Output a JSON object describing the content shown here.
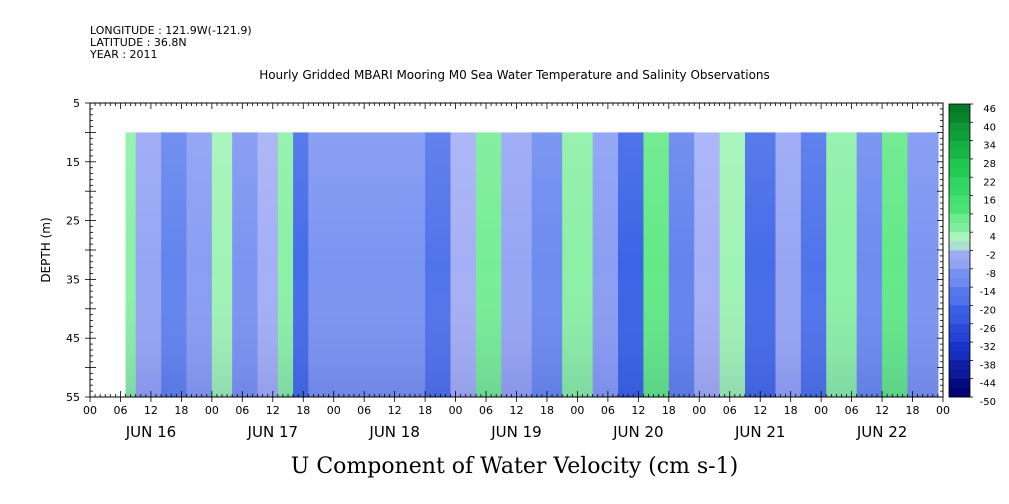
{
  "header": {
    "longitude": "LONGITUDE : 121.9W(-121.9)",
    "latitude": "LATITUDE : 36.8N",
    "year": "YEAR : 2011"
  },
  "chart_data": {
    "type": "heatmap",
    "title": "Hourly Gridded MBARI Mooring M0 Sea Water Temperature and Salinity Observations",
    "xlabel": "U Component of Water Velocity (cm s-1)",
    "ylabel": "DEPTH (m)",
    "ylim": [
      5,
      55
    ],
    "y_ticks": [
      5,
      15,
      25,
      35,
      45,
      55
    ],
    "y_reversed": true,
    "x_hour_ticks": [
      "00",
      "06",
      "12",
      "18",
      "00",
      "06",
      "12",
      "18",
      "00",
      "06",
      "12",
      "18",
      "00",
      "06",
      "12",
      "18",
      "00",
      "06",
      "12",
      "18",
      "00",
      "06",
      "12",
      "18",
      "00",
      "06",
      "12",
      "18",
      "00"
    ],
    "x_day_labels": [
      "JUN 16",
      "JUN 17",
      "JUN 18",
      "JUN 19",
      "JUN 20",
      "JUN 21",
      "JUN 22"
    ],
    "colorbar": {
      "min": -50,
      "max": 50,
      "labels": [
        "46",
        "40",
        "34",
        "28",
        "22",
        "16",
        "10",
        "4",
        "-2",
        "-8",
        "-14",
        "-20",
        "-26",
        "-32",
        "-38",
        "-44",
        "-50"
      ]
    },
    "data_extent": {
      "depth_top": 10,
      "depth_bottom": 55,
      "start_hour": 7,
      "end_hour": 167
    },
    "band_values_cm_s": [
      {
        "start_hour": 7,
        "end_hour": 9,
        "value": 4
      },
      {
        "start_hour": 9,
        "end_hour": 14,
        "value": -6
      },
      {
        "start_hour": 14,
        "end_hour": 19,
        "value": -14
      },
      {
        "start_hour": 19,
        "end_hour": 24,
        "value": -8
      },
      {
        "start_hour": 24,
        "end_hour": 28,
        "value": 2
      },
      {
        "start_hour": 28,
        "end_hour": 33,
        "value": -10
      },
      {
        "start_hour": 33,
        "end_hour": 37,
        "value": -4
      },
      {
        "start_hour": 37,
        "end_hour": 40,
        "value": 4
      },
      {
        "start_hour": 40,
        "end_hour": 43,
        "value": -20
      },
      {
        "start_hour": 43,
        "end_hour": 66,
        "value": -10
      },
      {
        "start_hour": 66,
        "end_hour": 71,
        "value": -18
      },
      {
        "start_hour": 71,
        "end_hour": 76,
        "value": -4
      },
      {
        "start_hour": 76,
        "end_hour": 81,
        "value": 6
      },
      {
        "start_hour": 81,
        "end_hour": 87,
        "value": -6
      },
      {
        "start_hour": 87,
        "end_hour": 93,
        "value": -12
      },
      {
        "start_hour": 93,
        "end_hour": 99,
        "value": 4
      },
      {
        "start_hour": 99,
        "end_hour": 104,
        "value": -8
      },
      {
        "start_hour": 104,
        "end_hour": 109,
        "value": -22
      },
      {
        "start_hour": 109,
        "end_hour": 114,
        "value": 8
      },
      {
        "start_hour": 114,
        "end_hour": 119,
        "value": -14
      },
      {
        "start_hour": 119,
        "end_hour": 124,
        "value": -4
      },
      {
        "start_hour": 124,
        "end_hour": 129,
        "value": 2
      },
      {
        "start_hour": 129,
        "end_hour": 135,
        "value": -20
      },
      {
        "start_hour": 135,
        "end_hour": 140,
        "value": -6
      },
      {
        "start_hour": 140,
        "end_hour": 145,
        "value": -18
      },
      {
        "start_hour": 145,
        "end_hour": 151,
        "value": 4
      },
      {
        "start_hour": 151,
        "end_hour": 156,
        "value": -12
      },
      {
        "start_hour": 156,
        "end_hour": 161,
        "value": 8
      },
      {
        "start_hour": 161,
        "end_hour": 167,
        "value": -10
      }
    ]
  }
}
